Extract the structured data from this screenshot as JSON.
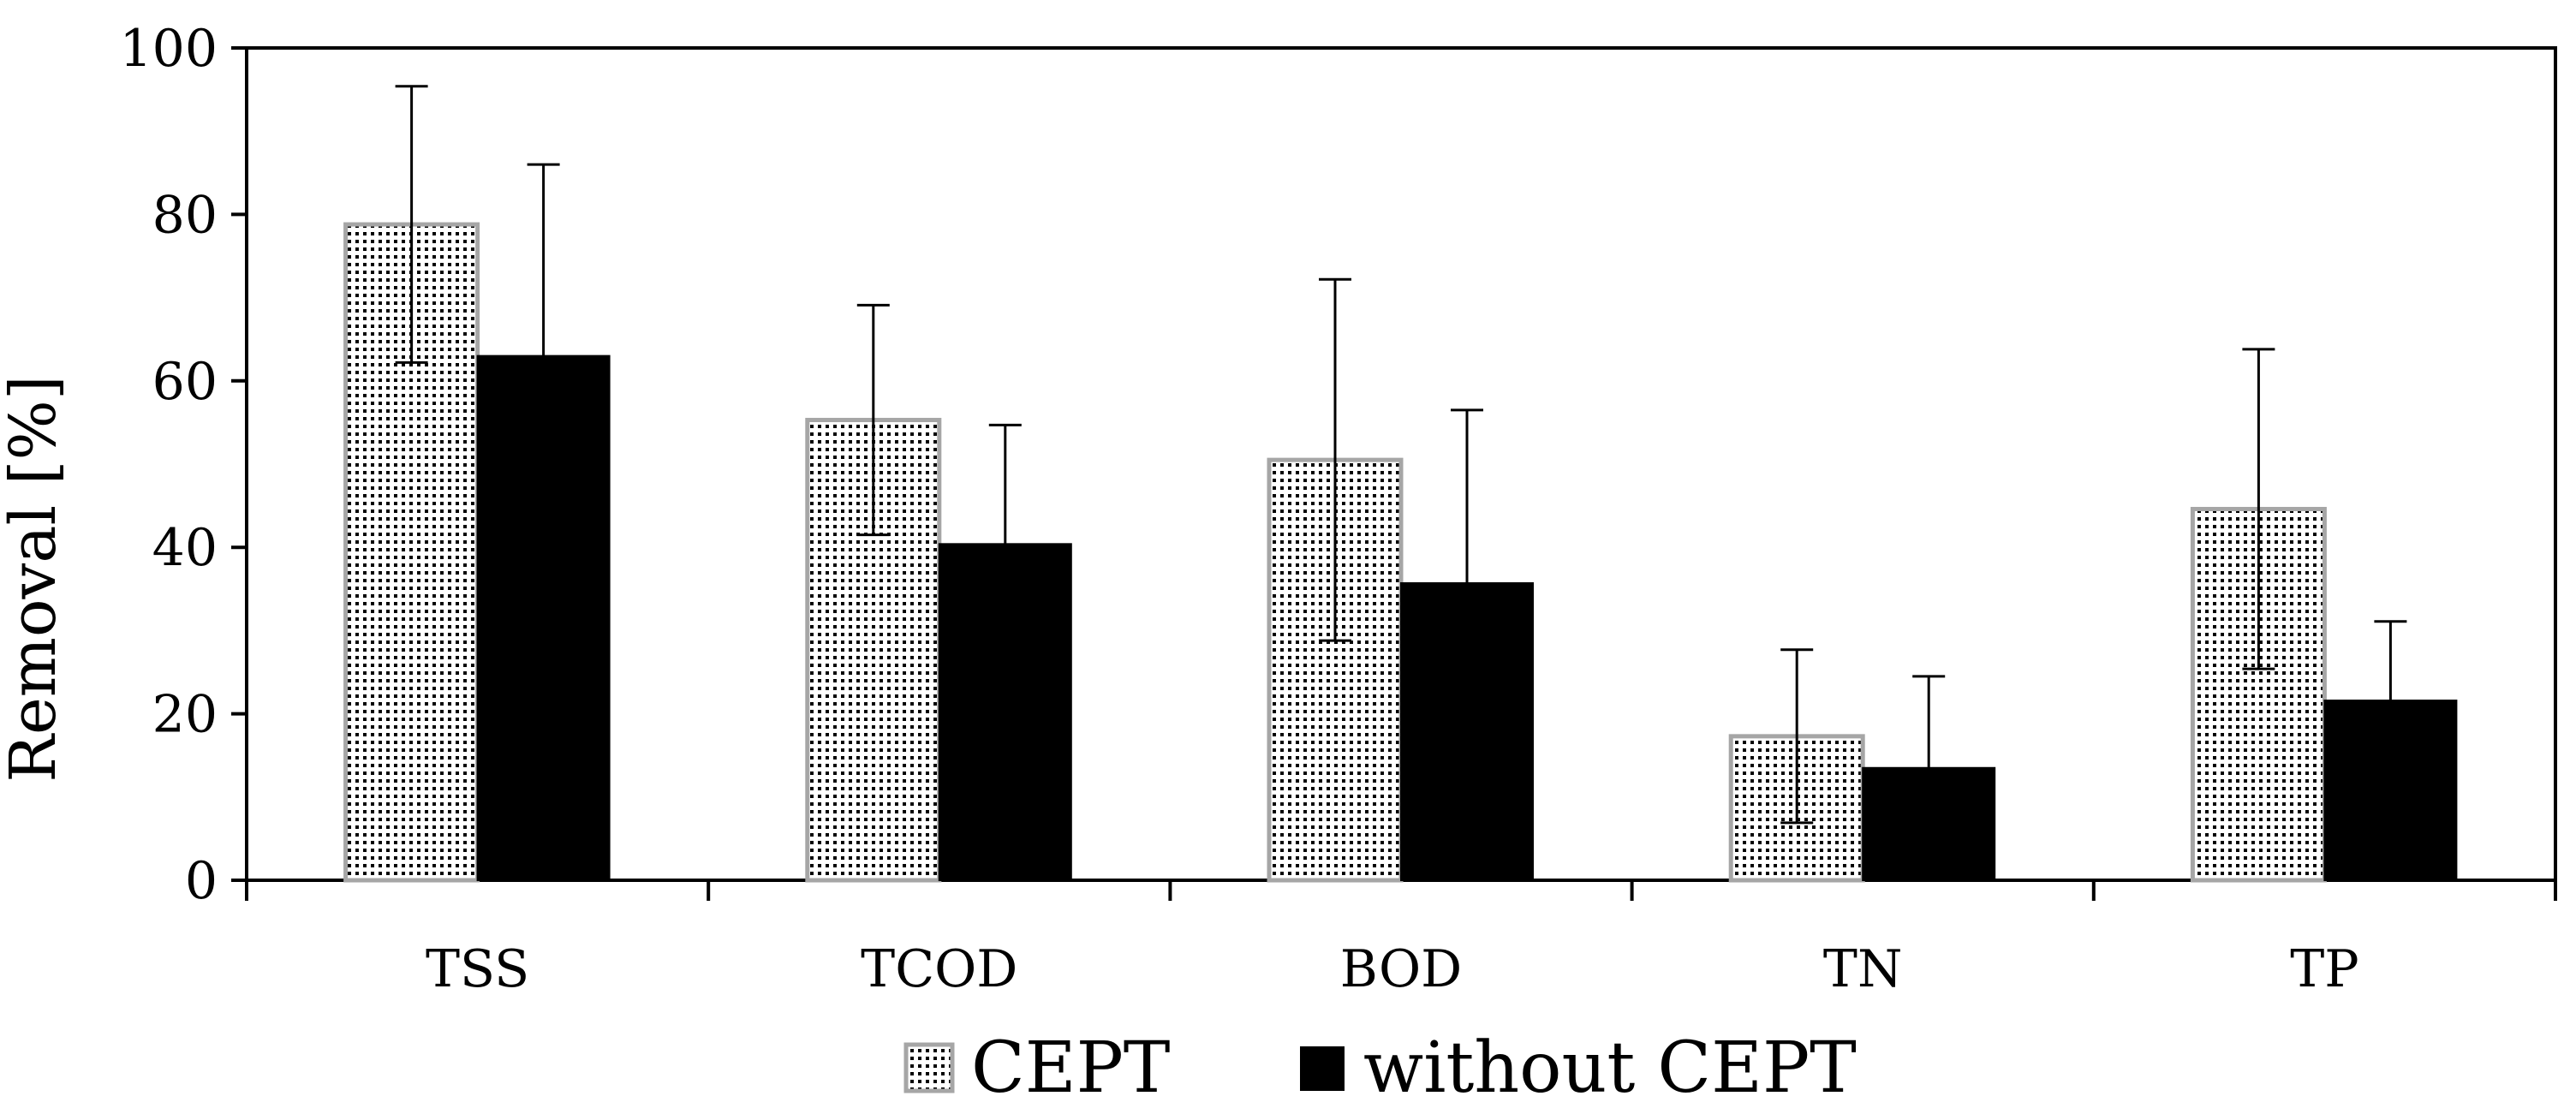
{
  "chart_data": {
    "type": "bar",
    "title": "",
    "xlabel": "",
    "ylabel": "Removal [%]",
    "ylim": [
      0,
      100
    ],
    "yticks": [
      0,
      20,
      40,
      60,
      80,
      100
    ],
    "grid": false,
    "legend_position": "bottom-center",
    "categories": [
      "TSS",
      "TCOD",
      "BOD",
      "TN",
      "TP"
    ],
    "series": [
      {
        "name": "CEPT",
        "values": [
          78.8,
          55.3,
          50.5,
          17.3,
          44.6
        ],
        "error": [
          16.6,
          13.8,
          21.7,
          10.4,
          19.2
        ],
        "color": "#ffffff",
        "pattern": "dotted",
        "edge_color": "#a6a6a6"
      },
      {
        "name": "without CEPT",
        "values": [
          63.0,
          40.4,
          35.7,
          13.5,
          21.6
        ],
        "error": [
          23.0,
          14.3,
          20.8,
          11.0,
          9.5
        ],
        "color": "#000000",
        "pattern": "solid",
        "edge_color": "#000000"
      }
    ]
  }
}
